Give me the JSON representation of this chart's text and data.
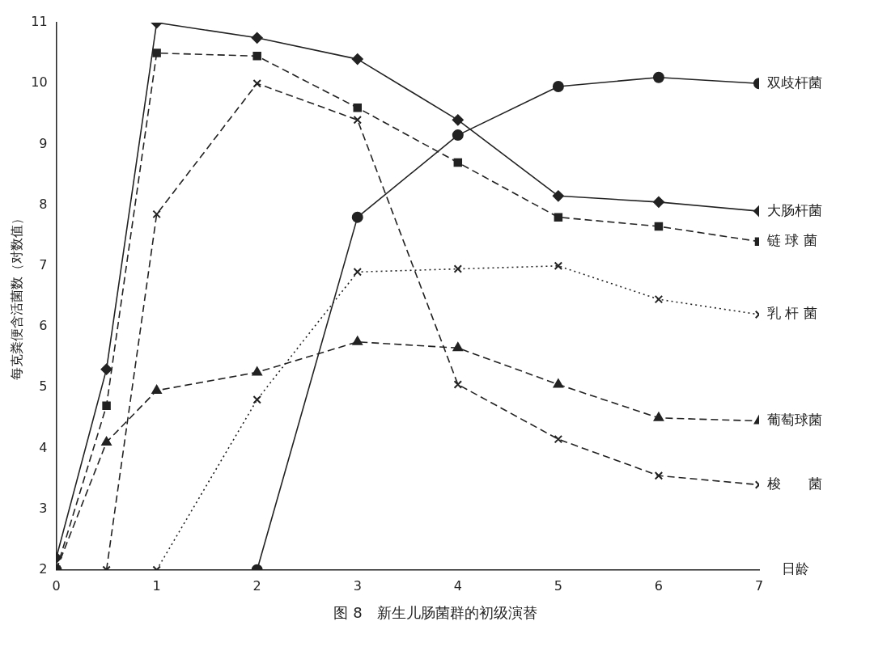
{
  "chart_data": {
    "type": "line",
    "title": "图 8　新生儿肠菌群的初级演替",
    "ylabel": "每克粪便含活菌数（对数值）",
    "xlabel": "日龄",
    "xlim": [
      0,
      7
    ],
    "xticks": [
      0,
      1,
      2,
      3,
      4,
      5,
      6,
      7
    ],
    "ylim": [
      2,
      11
    ],
    "yticks": [
      2,
      3,
      4,
      5,
      6,
      7,
      8,
      9,
      10,
      11
    ],
    "grid": false,
    "legend": false,
    "series": [
      {
        "name": "双歧杆菌",
        "color": "#222222",
        "marker": "circle",
        "line_style": "solid",
        "x": [
          0,
          2,
          3,
          4,
          5,
          6,
          7
        ],
        "values": [
          2,
          2,
          7.8,
          9.15,
          9.95,
          10.1,
          10.0
        ]
      },
      {
        "name": "大肠杆菌",
        "color": "#222222",
        "marker": "diamond",
        "line_style": "solid",
        "x": [
          0,
          0.5,
          1,
          2,
          3,
          4,
          5,
          6,
          7
        ],
        "values": [
          2.2,
          5.3,
          11,
          10.75,
          10.4,
          9.4,
          8.15,
          8.05,
          7.9
        ]
      },
      {
        "name": "链 球 菌",
        "color": "#222222",
        "marker": "square",
        "line_style": "dashed",
        "x": [
          0,
          0.5,
          1,
          2,
          3,
          4,
          5,
          6,
          7
        ],
        "values": [
          2,
          4.7,
          10.5,
          10.45,
          9.6,
          8.7,
          7.8,
          7.65,
          7.4
        ]
      },
      {
        "name": "乳 杆 菌",
        "color": "#222222",
        "marker": "cross",
        "line_style": "dotted",
        "x": [
          1,
          2,
          3,
          4,
          5,
          6,
          7
        ],
        "values": [
          2,
          4.8,
          6.9,
          6.95,
          7.0,
          6.45,
          6.2
        ]
      },
      {
        "name": "葡萄球菌",
        "color": "#222222",
        "marker": "triangle",
        "line_style": "dashed",
        "x": [
          0,
          0.5,
          1,
          2,
          3,
          4,
          5,
          6,
          7
        ],
        "values": [
          2,
          4.1,
          4.95,
          5.25,
          5.75,
          5.65,
          5.05,
          4.5,
          4.45
        ]
      },
      {
        "name": "梭　　菌",
        "color": "#222222",
        "marker": "cross",
        "line_style": "dashed",
        "x": [
          0.5,
          1,
          2,
          3,
          4,
          5,
          6,
          7
        ],
        "values": [
          2,
          7.85,
          10.0,
          9.4,
          5.05,
          4.15,
          3.55,
          3.4
        ]
      }
    ]
  }
}
